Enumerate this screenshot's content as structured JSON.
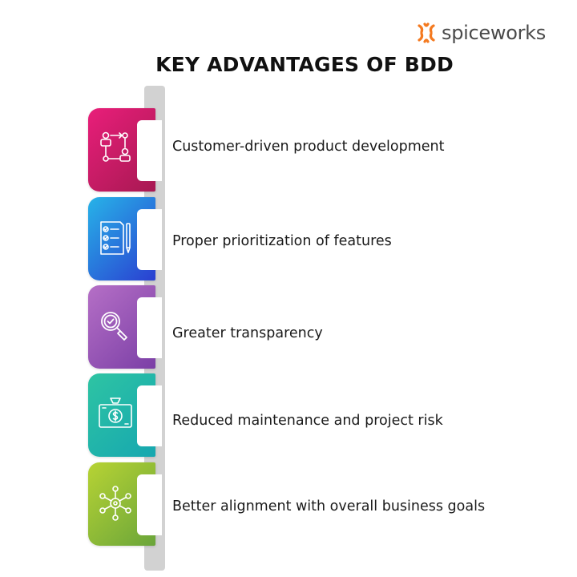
{
  "logo": {
    "text": "spiceworks",
    "icon": "spiceworks-logo-mark",
    "color": "#f47a20"
  },
  "title": "KEY ADVANTAGES OF BDD",
  "items": [
    {
      "label": "Customer-driven product development",
      "icon": "customer-flow-icon",
      "gradient": [
        "#e91e7a",
        "#a71952"
      ]
    },
    {
      "label": "Proper prioritization of features",
      "icon": "checklist-icon",
      "gradient": [
        "#27b3e8",
        "#2a3fd1"
      ]
    },
    {
      "label": "Greater transparency",
      "icon": "magnifier-check-icon",
      "gradient": [
        "#b56fc6",
        "#7b3fa6"
      ]
    },
    {
      "label": "Reduced maintenance and project risk",
      "icon": "money-bag-icon",
      "gradient": [
        "#2ec4a3",
        "#16a7b0"
      ]
    },
    {
      "label": "Better alignment with overall business goals",
      "icon": "network-hub-icon",
      "gradient": [
        "#b7d334",
        "#6aa53a"
      ]
    }
  ]
}
